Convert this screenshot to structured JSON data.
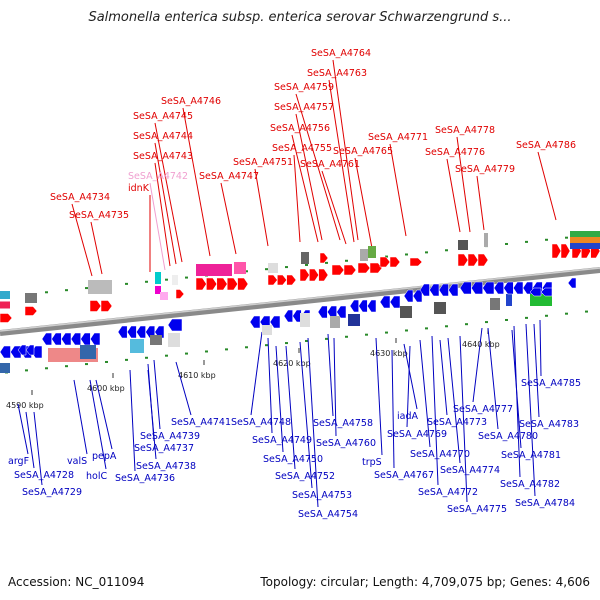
{
  "title": "Salmonella enterica subsp. enterica serovar Schwarzengrund s...",
  "footer": {
    "accession": "Accession: NC_011094",
    "summary": "Topology: circular; Length: 4,709,075 bp; Genes: 4,606"
  },
  "colors": {
    "top_label": "#e00000",
    "bottom_label": "#0000c0",
    "highlight_label": "#f0a0d0",
    "forward_gene": "#ff0000",
    "reverse_gene": "#0000ee"
  },
  "ticks": [
    "4590 kbp",
    "4600 kbp",
    "4610 kbp",
    "4620 kbp",
    "4630 kbp",
    "4640 kbp"
  ],
  "top_labels": [
    "SeSA_A4764",
    "SeSA_A4763",
    "SeSA_A4759",
    "SeSA_A4757",
    "SeSA_A4746",
    "SeSA_A4745",
    "SeSA_A4756",
    "SeSA_A4744",
    "SeSA_A4755",
    "SeSA_A4765",
    "SeSA_A4771",
    "SeSA_A4778",
    "SeSA_A4786",
    "SeSA_A4743",
    "SeSA_A4751",
    "SeSA_A4761",
    "SeSA_A4776",
    "SeSA_A4742",
    "SeSA_A4747",
    "SeSA_A4779",
    "idnK",
    "SeSA_A4734",
    "SeSA_A4735"
  ],
  "bottom_labels": [
    "SeSA_A4785",
    "SeSA_A4777",
    "SeSA_A4783",
    "SeSA_A4741",
    "SeSA_A4748",
    "SeSA_A4758",
    "iadA",
    "SeSA_A4773",
    "SeSA_A4780",
    "SeSA_A4739",
    "SeSA_A4769",
    "SeSA_A4749",
    "SeSA_A4760",
    "SeSA_A4737",
    "SeSA_A4781",
    "SeSA_A4750",
    "trpS",
    "SeSA_A4770",
    "argF",
    "valS",
    "pepA",
    "SeSA_A4738",
    "SeSA_A4774",
    "SeSA_A4728",
    "holC",
    "SeSA_A4736",
    "SeSA_A4752",
    "SeSA_A4767",
    "SeSA_A4782",
    "SeSA_A4729",
    "SeSA_A4753",
    "SeSA_A4772",
    "SeSA_A4784",
    "SeSA_A4775",
    "SeSA_A4754"
  ]
}
